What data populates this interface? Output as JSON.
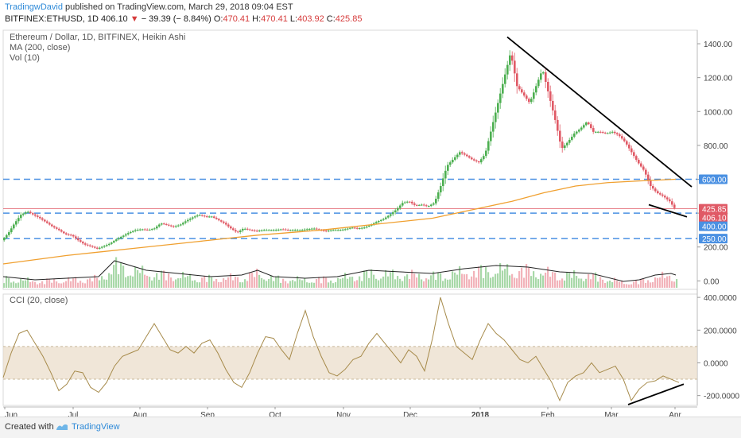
{
  "header": {
    "author": "TradingwDavid",
    "published": "published on TradingView.com, March 29, 2018 09:04 EST",
    "symbol": "BITFINEX:ETHUSD, 1D",
    "last": "406.10",
    "change": "− 39.39 (− 8.84%)",
    "o_label": "O:",
    "o": "470.41",
    "h_label": "H:",
    "h": "470.41",
    "l_label": "L:",
    "l": "403.92",
    "c_label": "C:",
    "c": "425.85"
  },
  "main_legend": {
    "title": "Ethereum / Dollar, 1D, BITFINEX, Heikin Ashi",
    "ma": "MA (200, close)",
    "vol": "Vol (10)"
  },
  "cci_legend": {
    "title": "CCI (20, close)"
  },
  "footer": {
    "created": "Created with",
    "brand": "TradingView"
  },
  "colors": {
    "up": "#4caf50",
    "down": "#e05a66",
    "ma": "#f0a030",
    "vol_line": "#222222",
    "cci_line": "#a68a4a",
    "band": "#e9dcc8",
    "level_line": "#4a90e2",
    "trend_line": "#000000",
    "axis_text": "#444444"
  },
  "chart_data": [
    {
      "type": "candlestick",
      "name": "price",
      "y_axis_ticks": [
        "1400.00",
        "1200.00",
        "1000.00",
        "800.00",
        "600.00",
        "400.00",
        "200.00",
        "0.00"
      ],
      "y_range": [
        -50,
        1480
      ],
      "x_axis_labels": [
        "Jun",
        "Jul",
        "Aug",
        "Sep",
        "Oct",
        "Nov",
        "Dec",
        "2018",
        "Feb",
        "Mar",
        "Apr"
      ],
      "price_badges": [
        {
          "text": "600.00",
          "value": 600,
          "color": "#4a90e2"
        },
        {
          "text": "425.85",
          "value": 425.85,
          "color": "#e05a66"
        },
        {
          "text": "406.10",
          "value": 406.1,
          "color": "#e05a66"
        },
        {
          "text": "400.00",
          "value": 400,
          "color": "#4a90e2"
        },
        {
          "text": "250.00",
          "value": 250,
          "color": "#4a90e2"
        }
      ],
      "horizontal_levels": [
        600,
        400,
        250
      ],
      "close_line": 425.85,
      "price_path": [
        [
          0,
          240
        ],
        [
          8,
          280
        ],
        [
          16,
          340
        ],
        [
          24,
          390
        ],
        [
          32,
          410
        ],
        [
          40,
          390
        ],
        [
          48,
          370
        ],
        [
          56,
          345
        ],
        [
          64,
          320
        ],
        [
          72,
          300
        ],
        [
          80,
          275
        ],
        [
          88,
          270
        ],
        [
          96,
          240
        ],
        [
          104,
          215
        ],
        [
          112,
          205
        ],
        [
          120,
          190
        ],
        [
          128,
          205
        ],
        [
          136,
          220
        ],
        [
          144,
          245
        ],
        [
          152,
          265
        ],
        [
          160,
          285
        ],
        [
          168,
          300
        ],
        [
          176,
          305
        ],
        [
          184,
          300
        ],
        [
          192,
          310
        ],
        [
          200,
          340
        ],
        [
          208,
          330
        ],
        [
          216,
          320
        ],
        [
          224,
          330
        ],
        [
          232,
          355
        ],
        [
          240,
          375
        ],
        [
          248,
          390
        ],
        [
          256,
          380
        ],
        [
          264,
          380
        ],
        [
          272,
          360
        ],
        [
          280,
          340
        ],
        [
          288,
          310
        ],
        [
          296,
          285
        ],
        [
          304,
          310
        ],
        [
          312,
          300
        ],
        [
          320,
          295
        ],
        [
          328,
          300
        ],
        [
          336,
          300
        ],
        [
          344,
          300
        ],
        [
          352,
          305
        ],
        [
          360,
          300
        ],
        [
          368,
          300
        ],
        [
          376,
          300
        ],
        [
          384,
          305
        ],
        [
          392,
          310
        ],
        [
          400,
          300
        ],
        [
          408,
          295
        ],
        [
          416,
          300
        ],
        [
          424,
          300
        ],
        [
          432,
          305
        ],
        [
          440,
          315
        ],
        [
          448,
          310
        ],
        [
          456,
          315
        ],
        [
          464,
          330
        ],
        [
          472,
          350
        ],
        [
          480,
          365
        ],
        [
          488,
          390
        ],
        [
          496,
          420
        ],
        [
          504,
          460
        ],
        [
          512,
          470
        ],
        [
          520,
          445
        ],
        [
          528,
          450
        ],
        [
          536,
          440
        ],
        [
          544,
          460
        ],
        [
          552,
          560
        ],
        [
          560,
          680
        ],
        [
          568,
          720
        ],
        [
          576,
          760
        ],
        [
          584,
          740
        ],
        [
          592,
          715
        ],
        [
          600,
          700
        ],
        [
          608,
          750
        ],
        [
          616,
          900
        ],
        [
          624,
          1050
        ],
        [
          632,
          1200
        ],
        [
          640,
          1350
        ],
        [
          648,
          1150
        ],
        [
          656,
          1100
        ],
        [
          664,
          1050
        ],
        [
          672,
          1150
        ],
        [
          680,
          1250
        ],
        [
          688,
          1100
        ],
        [
          696,
          950
        ],
        [
          704,
          780
        ],
        [
          712,
          820
        ],
        [
          720,
          870
        ],
        [
          728,
          900
        ],
        [
          736,
          940
        ],
        [
          744,
          880
        ],
        [
          752,
          880
        ],
        [
          760,
          870
        ],
        [
          768,
          880
        ],
        [
          776,
          860
        ],
        [
          784,
          820
        ],
        [
          792,
          760
        ],
        [
          800,
          700
        ],
        [
          808,
          650
        ],
        [
          816,
          560
        ],
        [
          824,
          520
        ],
        [
          832,
          500
        ],
        [
          840,
          470
        ],
        [
          846,
          430
        ]
      ],
      "ma_path": [
        [
          0,
          100
        ],
        [
          80,
          150
        ],
        [
          160,
          190
        ],
        [
          240,
          230
        ],
        [
          320,
          270
        ],
        [
          400,
          300
        ],
        [
          480,
          340
        ],
        [
          540,
          370
        ],
        [
          600,
          430
        ],
        [
          640,
          470
        ],
        [
          680,
          520
        ],
        [
          720,
          560
        ],
        [
          760,
          580
        ],
        [
          800,
          590
        ],
        [
          846,
          600
        ]
      ],
      "trendlines": [
        {
          "from": [
            634,
            1440
          ],
          "to": [
            866,
            555
          ]
        },
        {
          "from": [
            812,
            450
          ],
          "to": [
            860,
            378
          ]
        }
      ]
    },
    {
      "type": "bar",
      "name": "volume",
      "y_range": [
        0,
        1
      ],
      "vol_ma_path": [
        [
          0,
          0.35
        ],
        [
          40,
          0.25
        ],
        [
          80,
          0.3
        ],
        [
          120,
          0.35
        ],
        [
          140,
          0.85
        ],
        [
          160,
          0.7
        ],
        [
          180,
          0.55
        ],
        [
          220,
          0.45
        ],
        [
          260,
          0.35
        ],
        [
          300,
          0.4
        ],
        [
          320,
          0.55
        ],
        [
          340,
          0.35
        ],
        [
          380,
          0.3
        ],
        [
          420,
          0.35
        ],
        [
          460,
          0.55
        ],
        [
          500,
          0.5
        ],
        [
          540,
          0.45
        ],
        [
          580,
          0.6
        ],
        [
          620,
          0.7
        ],
        [
          660,
          0.65
        ],
        [
          700,
          0.5
        ],
        [
          740,
          0.45
        ],
        [
          780,
          0.2
        ],
        [
          800,
          0.25
        ],
        [
          820,
          0.4
        ],
        [
          840,
          0.45
        ],
        [
          846,
          0.4
        ]
      ]
    },
    {
      "type": "line",
      "name": "CCI (20, close)",
      "y_axis_ticks": [
        "400.0000",
        "200.0000",
        "0.0000",
        "-200.0000"
      ],
      "y_range": [
        -260,
        420
      ],
      "band": [
        -100,
        100
      ],
      "cci_path": [
        [
          0,
          -90
        ],
        [
          10,
          60
        ],
        [
          20,
          180
        ],
        [
          30,
          200
        ],
        [
          40,
          120
        ],
        [
          50,
          40
        ],
        [
          60,
          -60
        ],
        [
          70,
          -170
        ],
        [
          80,
          -130
        ],
        [
          90,
          -50
        ],
        [
          100,
          -60
        ],
        [
          110,
          -150
        ],
        [
          120,
          -180
        ],
        [
          130,
          -120
        ],
        [
          140,
          -20
        ],
        [
          150,
          40
        ],
        [
          160,
          60
        ],
        [
          170,
          80
        ],
        [
          180,
          160
        ],
        [
          190,
          240
        ],
        [
          200,
          160
        ],
        [
          210,
          80
        ],
        [
          220,
          60
        ],
        [
          230,
          100
        ],
        [
          240,
          60
        ],
        [
          250,
          120
        ],
        [
          260,
          140
        ],
        [
          270,
          60
        ],
        [
          280,
          -40
        ],
        [
          290,
          -120
        ],
        [
          300,
          -150
        ],
        [
          310,
          -60
        ],
        [
          320,
          60
        ],
        [
          330,
          160
        ],
        [
          340,
          150
        ],
        [
          350,
          80
        ],
        [
          360,
          20
        ],
        [
          370,
          180
        ],
        [
          380,
          320
        ],
        [
          390,
          160
        ],
        [
          400,
          40
        ],
        [
          410,
          -60
        ],
        [
          420,
          -80
        ],
        [
          430,
          -40
        ],
        [
          440,
          20
        ],
        [
          450,
          40
        ],
        [
          460,
          120
        ],
        [
          470,
          180
        ],
        [
          480,
          120
        ],
        [
          490,
          60
        ],
        [
          500,
          0
        ],
        [
          510,
          80
        ],
        [
          520,
          40
        ],
        [
          530,
          -50
        ],
        [
          540,
          150
        ],
        [
          550,
          400
        ],
        [
          560,
          240
        ],
        [
          570,
          100
        ],
        [
          580,
          60
        ],
        [
          590,
          20
        ],
        [
          600,
          140
        ],
        [
          610,
          240
        ],
        [
          620,
          180
        ],
        [
          630,
          140
        ],
        [
          640,
          80
        ],
        [
          650,
          20
        ],
        [
          660,
          0
        ],
        [
          670,
          40
        ],
        [
          680,
          -40
        ],
        [
          690,
          -120
        ],
        [
          700,
          -230
        ],
        [
          710,
          -120
        ],
        [
          720,
          -80
        ],
        [
          730,
          -60
        ],
        [
          740,
          0
        ],
        [
          750,
          -60
        ],
        [
          760,
          -40
        ],
        [
          770,
          -20
        ],
        [
          780,
          -100
        ],
        [
          790,
          -230
        ],
        [
          800,
          -160
        ],
        [
          810,
          -120
        ],
        [
          820,
          -110
        ],
        [
          830,
          -80
        ],
        [
          840,
          -100
        ],
        [
          850,
          -120
        ]
      ],
      "trendline": {
        "from": [
          786,
          -255
        ],
        "to": [
          856,
          -130
        ]
      }
    }
  ]
}
